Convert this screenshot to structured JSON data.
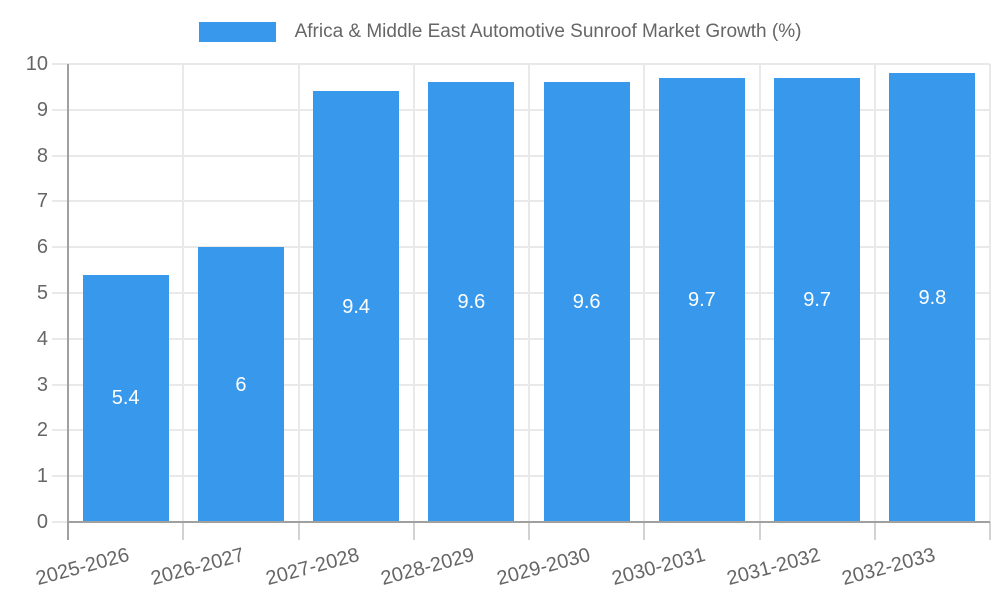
{
  "legend": {
    "label": "Africa & Middle East Automotive Sunroof Market Growth (%)"
  },
  "chart_data": {
    "type": "bar",
    "title": "Africa & Middle East Automotive Sunroof Market Growth (%)",
    "categories": [
      "2025-2026",
      "2026-2027",
      "2027-2028",
      "2028-2029",
      "2029-2030",
      "2030-2031",
      "2031-2032",
      "2032-2033"
    ],
    "values": [
      5.4,
      6,
      9.4,
      9.6,
      9.6,
      9.7,
      9.7,
      9.8
    ],
    "value_labels": [
      "5.4",
      "6",
      "9.4",
      "9.6",
      "9.6",
      "9.7",
      "9.7",
      "9.8"
    ],
    "xlabel": "",
    "ylabel": "",
    "ylim": [
      0,
      10
    ],
    "y_ticks": [
      "0",
      "1",
      "2",
      "3",
      "4",
      "5",
      "6",
      "7",
      "8",
      "9",
      "10"
    ],
    "grid": true,
    "legend_position": "top",
    "colors": {
      "bar": "#3898ec",
      "bar_label": "#ffffff",
      "tick_text": "#666666",
      "grid_line": "#e9e9e9",
      "boundary_tick": "#d2d2d2",
      "axis_line": "#a0a0a0"
    }
  }
}
